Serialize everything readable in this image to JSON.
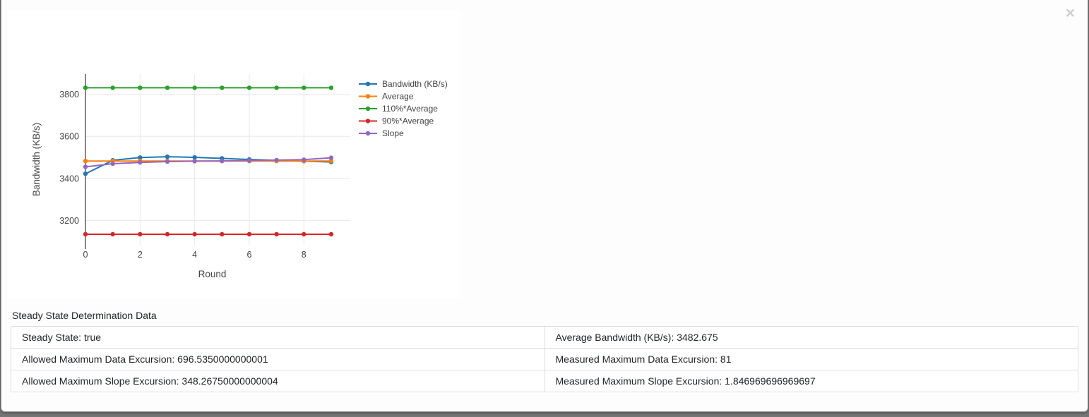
{
  "modal": {
    "close_label": "×"
  },
  "chart_data": {
    "type": "line",
    "x": [
      0,
      1,
      2,
      3,
      4,
      5,
      6,
      7,
      8,
      9
    ],
    "series": [
      {
        "name": "Bandwidth (KB/s)",
        "color": "#1f77b4",
        "values": [
          3422,
          3486,
          3499,
          3503,
          3500,
          3495,
          3490,
          3486,
          3482,
          3478
        ]
      },
      {
        "name": "Average",
        "color": "#ff7f0e",
        "values": [
          3482.675,
          3482.675,
          3482.675,
          3482.675,
          3482.675,
          3482.675,
          3482.675,
          3482.675,
          3482.675,
          3482.675
        ]
      },
      {
        "name": "110%*Average",
        "color": "#2ca02c",
        "values": [
          3830.9425,
          3830.9425,
          3830.9425,
          3830.9425,
          3830.9425,
          3830.9425,
          3830.9425,
          3830.9425,
          3830.9425,
          3830.9425
        ]
      },
      {
        "name": "90%*Average",
        "color": "#d62728",
        "values": [
          3134.4075,
          3134.4075,
          3134.4075,
          3134.4075,
          3134.4075,
          3134.4075,
          3134.4075,
          3134.4075,
          3134.4075,
          3134.4075
        ]
      },
      {
        "name": "Slope",
        "color": "#9467bd",
        "values": [
          3455,
          3470,
          3476,
          3480,
          3482,
          3483,
          3485,
          3487,
          3489,
          3498
        ]
      }
    ],
    "xlabel": "Round",
    "ylabel": "Bandwidth (KB/s)",
    "x_ticks": [
      0,
      2,
      4,
      6,
      8
    ],
    "y_ticks": [
      3200,
      3400,
      3600,
      3800
    ],
    "xlim": [
      0,
      9.7
    ],
    "ylim": [
      3084,
      3896
    ],
    "grid": true,
    "legend_position": "right"
  },
  "table": {
    "caption": "Steady State Determination Data",
    "rows": [
      [
        "Steady State: true",
        "Average Bandwidth (KB/s): 3482.675"
      ],
      [
        "Allowed Maximum Data Excursion: 696.5350000000001",
        "Measured Maximum Data Excursion: 81"
      ],
      [
        "Allowed Maximum Slope Excursion: 348.26750000000004",
        "Measured Maximum Slope Excursion: 1.846969696969697"
      ]
    ]
  }
}
